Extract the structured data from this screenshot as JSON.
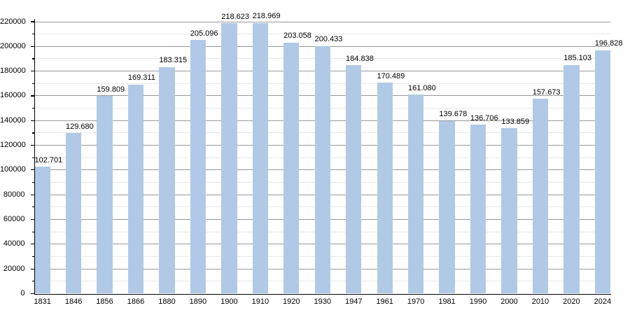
{
  "chart_data": {
    "type": "bar",
    "title": "",
    "xlabel": "",
    "ylabel": "",
    "categories": [
      "1831",
      "1846",
      "1856",
      "1866",
      "1880",
      "1890",
      "1900",
      "1910",
      "1920",
      "1930",
      "1947",
      "1961",
      "1970",
      "1981",
      "1990",
      "2000",
      "2010",
      "2020",
      "2024"
    ],
    "values": [
      102701,
      129680,
      159809,
      169311,
      183315,
      205096,
      218623,
      218969,
      203058,
      200433,
      184838,
      170489,
      161080,
      139678,
      136706,
      133859,
      157673,
      185103,
      196828
    ],
    "value_labels": [
      "102.701",
      "129.680",
      "159.809",
      "169.311",
      "183.315",
      "205.096",
      "218.623",
      "218.969",
      "203.058",
      "200.433",
      "184.838",
      "170.489",
      "161.080",
      "139.678",
      "136.706",
      "133.859",
      "157.673",
      "185.103",
      "196.828"
    ],
    "ylim": [
      0,
      220000
    ],
    "y_major_step": 20000,
    "y_minor_step": 10000,
    "y_tick_labels": [
      "0",
      "20000",
      "40000",
      "60000",
      "80000",
      "100000",
      "120000",
      "140000",
      "160000",
      "180000",
      "200000",
      "220000"
    ],
    "grid": "horizontal major+minor",
    "legend": "none",
    "colors": {
      "bar_fill": "#b0c9e6",
      "grid_major": "#999999",
      "grid_minor": "#e9e9e9",
      "axis": "#000000",
      "text": "#000000",
      "background": "#ffffff"
    }
  }
}
